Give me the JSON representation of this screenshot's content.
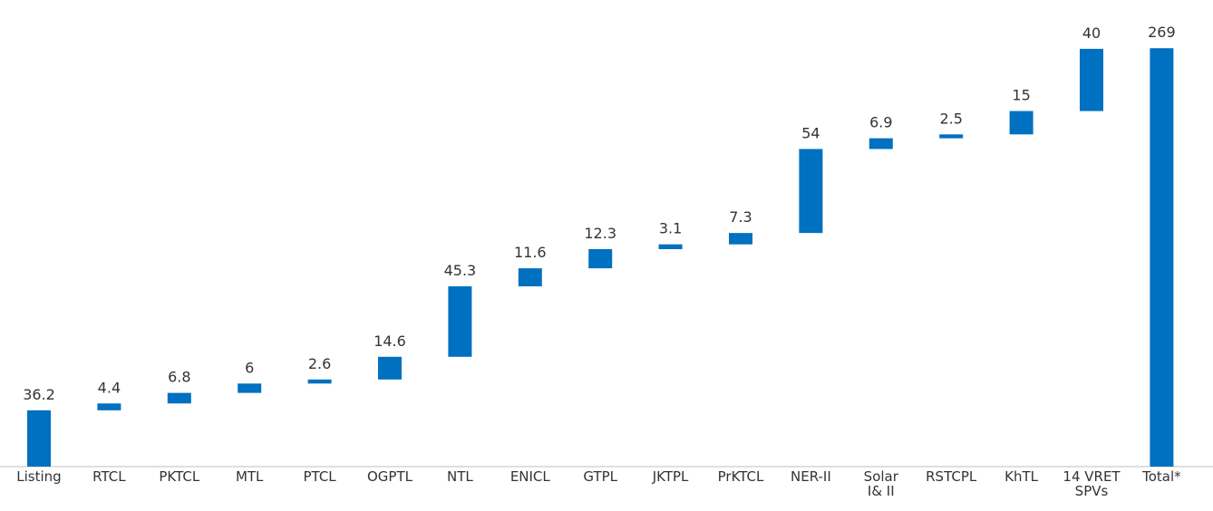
{
  "chart_data": {
    "type": "waterfall",
    "categories": [
      "Listing",
      "RTCL",
      "PKTCL",
      "MTL",
      "PTCL",
      "OGPTL",
      "NTL",
      "ENICL",
      "GTPL",
      "JKTPL",
      "PrKTCL",
      "NER-II",
      "Solar I& II",
      "RSTCPL",
      "KhTL",
      "14 VRET SPVs",
      "Total*"
    ],
    "values": [
      36.2,
      4.4,
      6.8,
      6,
      2.6,
      14.6,
      45.3,
      11.6,
      12.3,
      3.1,
      7.3,
      54,
      6.9,
      2.5,
      15,
      40,
      269
    ],
    "total_last": true,
    "color": "#0070c0",
    "ylim": [
      0,
      300
    ]
  }
}
